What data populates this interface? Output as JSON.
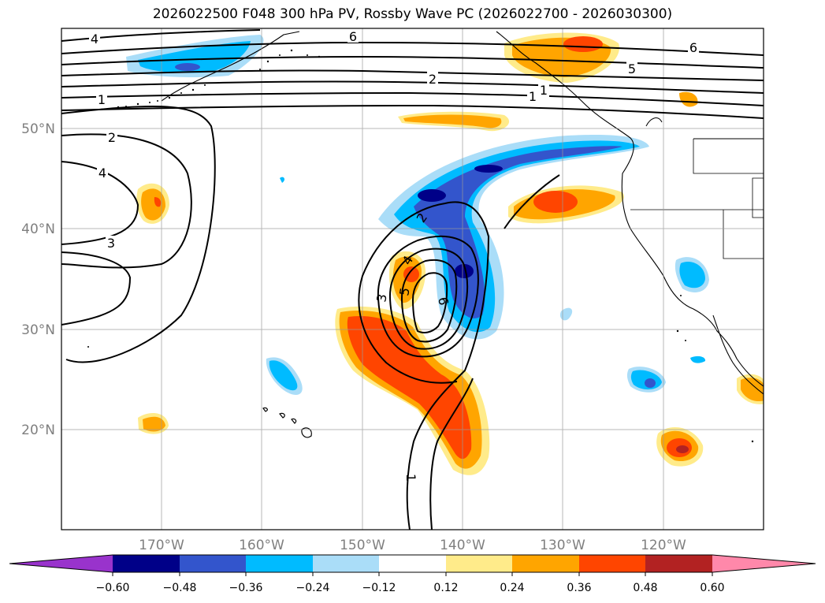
{
  "title": "2026022500 F048 300 hPa PV, Rossby Wave PC (2026022700 - 2026030300)",
  "lat_labels": [
    "50°N",
    "40°N",
    "30°N",
    "20°N"
  ],
  "lon_labels": [
    "170°W",
    "160°W",
    "150°W",
    "140°W",
    "130°W",
    "120°W"
  ],
  "contour_labels": [
    "4",
    "6",
    "6",
    "5",
    "2",
    "1",
    "1",
    "1",
    "2",
    "4",
    "3",
    "2",
    "4",
    "3",
    "5",
    "6",
    "1"
  ],
  "colorbar": {
    "tick_labels": [
      "−0.60",
      "−0.48",
      "−0.36",
      "−0.24",
      "−0.12",
      "0.12",
      "0.24",
      "0.36",
      "0.48",
      "0.60"
    ],
    "colors": [
      "#9933cc",
      "#000088",
      "#3355cc",
      "#00bbff",
      "#aaddf8",
      "#ffffff",
      "#ffeb8a",
      "#ffa500",
      "#ff4500",
      "#b22222",
      "#ff88aa"
    ]
  },
  "map": {
    "lat_range": [
      10,
      60
    ],
    "lon_range": [
      -180,
      -110
    ],
    "grid": true,
    "field_colors": {
      "neg_light": "#aaddf8",
      "neg_mid": "#00bbff",
      "neg_strong": "#3355cc",
      "neg_max": "#000088",
      "pos_light": "#ffeb8a",
      "pos_mid": "#ffa500",
      "pos_strong": "#ff4500",
      "pos_max": "#b22222"
    }
  }
}
